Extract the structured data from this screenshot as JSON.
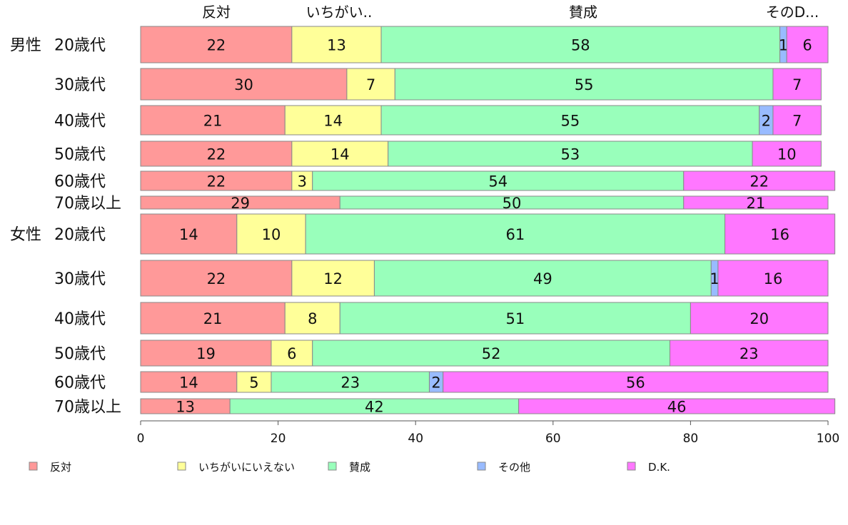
{
  "chart_data": {
    "type": "bar",
    "orientation": "horizontal",
    "stacked": true,
    "xlim": [
      0,
      100
    ],
    "x_ticks": [
      "0",
      "20",
      "40",
      "60",
      "80",
      "100"
    ],
    "x_tick_values": [
      0,
      20,
      40,
      60,
      80,
      100
    ],
    "legend_placement": "bottom",
    "header_labels": [
      "反対",
      "いちがい..",
      "賛成",
      "そのD..."
    ],
    "series": [
      {
        "name": "反対",
        "color": "#ff9999"
      },
      {
        "name": "いちがいにいえない",
        "color": "#ffff99"
      },
      {
        "name": "賛成",
        "color": "#99ffbb"
      },
      {
        "name": "その他",
        "color": "#99bbff"
      },
      {
        "name": "D.K.",
        "color": "#ff77ff"
      }
    ],
    "groups": [
      {
        "label": "男性",
        "row_index": 0
      },
      {
        "label": "女性",
        "row_index": 6
      }
    ],
    "rows": [
      {
        "label": "20歳代",
        "values": [
          22,
          13,
          58,
          1,
          6
        ],
        "labels": [
          "22",
          "13",
          "58",
          "1",
          "6"
        ]
      },
      {
        "label": "30歳代",
        "values": [
          30,
          7,
          55,
          0,
          7
        ],
        "labels": [
          "30",
          "7",
          "55",
          "",
          "7"
        ]
      },
      {
        "label": "40歳代",
        "values": [
          21,
          14,
          55,
          2,
          7
        ],
        "labels": [
          "21",
          "14",
          "55",
          "2",
          "7"
        ]
      },
      {
        "label": "50歳代",
        "values": [
          22,
          14,
          53,
          0,
          10
        ],
        "labels": [
          "22",
          "14",
          "53",
          "",
          "10"
        ]
      },
      {
        "label": "60歳代",
        "values": [
          22,
          3,
          54,
          0,
          22
        ],
        "labels": [
          "22",
          "3",
          "54",
          "",
          "22"
        ]
      },
      {
        "label": "70歳以上",
        "values": [
          29,
          0,
          50,
          0,
          21
        ],
        "labels": [
          "29",
          "",
          "50",
          "",
          "21"
        ]
      },
      {
        "label": "20歳代",
        "values": [
          14,
          10,
          61,
          0,
          16
        ],
        "labels": [
          "14",
          "10",
          "61",
          "",
          "16"
        ]
      },
      {
        "label": "30歳代",
        "values": [
          22,
          12,
          49,
          1,
          16
        ],
        "labels": [
          "22",
          "12",
          "49",
          "1",
          "16"
        ]
      },
      {
        "label": "40歳代",
        "values": [
          21,
          8,
          51,
          0,
          20
        ],
        "labels": [
          "21",
          "8",
          "51",
          "",
          "20"
        ]
      },
      {
        "label": "50歳代",
        "values": [
          19,
          6,
          52,
          0,
          23
        ],
        "labels": [
          "19",
          "6",
          "52",
          "",
          "23"
        ]
      },
      {
        "label": "60歳代",
        "values": [
          14,
          5,
          23,
          2,
          56
        ],
        "labels": [
          "14",
          "5",
          "23",
          "2",
          "56"
        ]
      },
      {
        "label": "70歳以上",
        "values": [
          13,
          0,
          42,
          0,
          46
        ],
        "labels": [
          "13",
          "",
          "42",
          "",
          "46"
        ]
      }
    ]
  }
}
